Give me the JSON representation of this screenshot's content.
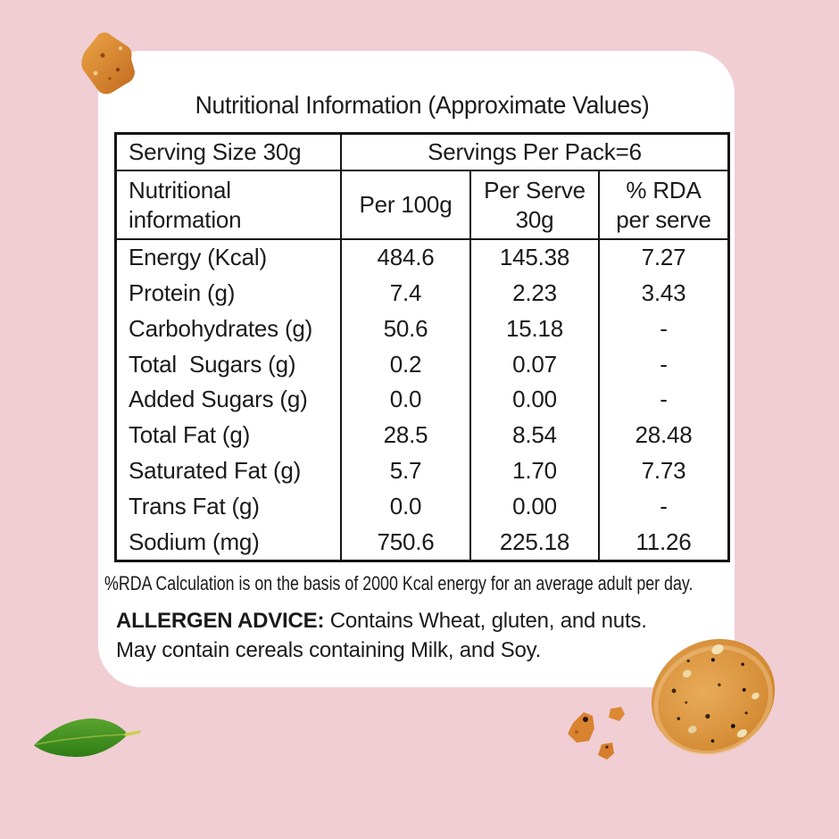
{
  "title": "Nutritional Information (Approximate Values)",
  "table": {
    "serving_size": "Serving Size 30g",
    "servings_per_pack": "Servings Per Pack=6",
    "columns": [
      {
        "line1": "Nutritional",
        "line2": "information"
      },
      {
        "line1": "Per 100g",
        "line2": ""
      },
      {
        "line1": "Per Serve",
        "line2": "30g"
      },
      {
        "line1": "% RDA",
        "line2": "per serve"
      }
    ],
    "rows": [
      {
        "label": "Energy (Kcal)",
        "per_100g": "484.6",
        "per_serve": "145.38",
        "rda": "7.27"
      },
      {
        "label": "Protein (g)",
        "per_100g": "7.4",
        "per_serve": "2.23",
        "rda": "3.43"
      },
      {
        "label": "Carbohydrates (g)",
        "per_100g": "50.6",
        "per_serve": "15.18",
        "rda": "-"
      },
      {
        "label": "Total  Sugars (g)",
        "per_100g": "0.2",
        "per_serve": "0.07",
        "rda": "-"
      },
      {
        "label": "Added Sugars (g)",
        "per_100g": "0.0",
        "per_serve": "0.00",
        "rda": "-"
      },
      {
        "label": "Total Fat (g)",
        "per_100g": "28.5",
        "per_serve": "8.54",
        "rda": "28.48"
      },
      {
        "label": "Saturated Fat (g)",
        "per_100g": "5.7",
        "per_serve": "1.70",
        "rda": "7.73"
      },
      {
        "label": "Trans Fat (g)",
        "per_100g": "0.0",
        "per_serve": "0.00",
        "rda": "-"
      },
      {
        "label": "Sodium (mg)",
        "per_100g": "750.6",
        "per_serve": "225.18",
        "rda": "11.26"
      }
    ]
  },
  "footnote": "%RDA Calculation is on the basis of 2000 Kcal energy for an average adult per day.",
  "allergen": {
    "label": "ALLERGEN ADVICE:",
    "line1": " Contains Wheat, gluten, and nuts.",
    "line2": "May contain cereals containing Milk, and Soy."
  },
  "colors": {
    "background": "#f0ced4",
    "card": "#ffffff",
    "text": "#1b1b1b",
    "table_border": "#151515",
    "cookie": "#d88f3a",
    "leaf": "#3f8f22"
  },
  "decorations": [
    {
      "icon": "cookie-crumb-icon",
      "position": "top-left"
    },
    {
      "icon": "leaf-icon",
      "position": "bottom-left"
    },
    {
      "icon": "cookie-icon",
      "position": "bottom-right"
    },
    {
      "icon": "cookie-crumbs-icon",
      "position": "bottom-center"
    }
  ]
}
